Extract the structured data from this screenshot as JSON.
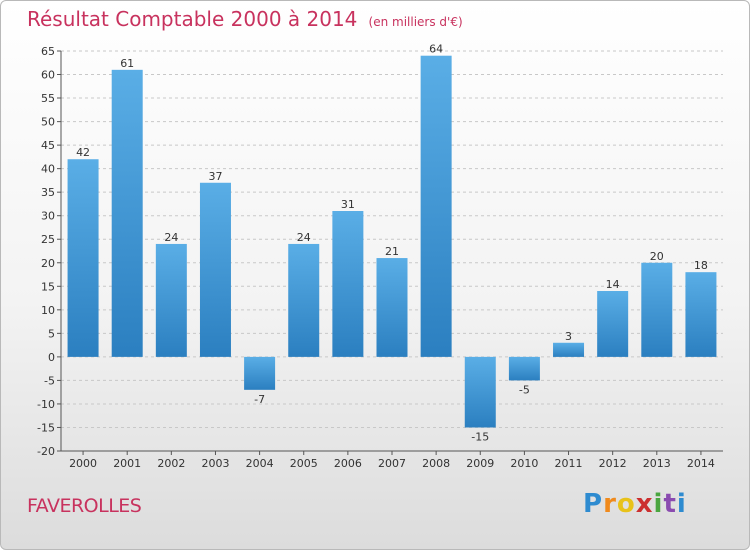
{
  "header": {
    "title": "Résultat Comptable 2000 à 2014",
    "subtitle": "(en milliers d'€)"
  },
  "commune": "FAVEROLLES",
  "logo": {
    "letters": [
      "P",
      "r",
      "o",
      "x",
      "i",
      "t",
      "i"
    ]
  },
  "colors": {
    "accent": "#c8325e",
    "bar_light": "#5aaee6",
    "bar_dark": "#2b7fc0"
  },
  "chart_data": {
    "type": "bar",
    "title": "Résultat Comptable 2000 à 2014",
    "subtitle": "(en milliers d'€)",
    "xlabel": "",
    "ylabel": "",
    "categories": [
      "2000",
      "2001",
      "2002",
      "2003",
      "2004",
      "2005",
      "2006",
      "2007",
      "2008",
      "2009",
      "2010",
      "2011",
      "2012",
      "2013",
      "2014"
    ],
    "values": [
      42,
      61,
      24,
      37,
      -7,
      24,
      31,
      21,
      64,
      -15,
      -5,
      3,
      14,
      20,
      18
    ],
    "ylim": [
      -20,
      65
    ],
    "yticks": [
      -20,
      -15,
      -10,
      -5,
      0,
      5,
      10,
      15,
      20,
      25,
      30,
      35,
      40,
      45,
      50,
      55,
      60,
      65
    ],
    "grid": true
  }
}
